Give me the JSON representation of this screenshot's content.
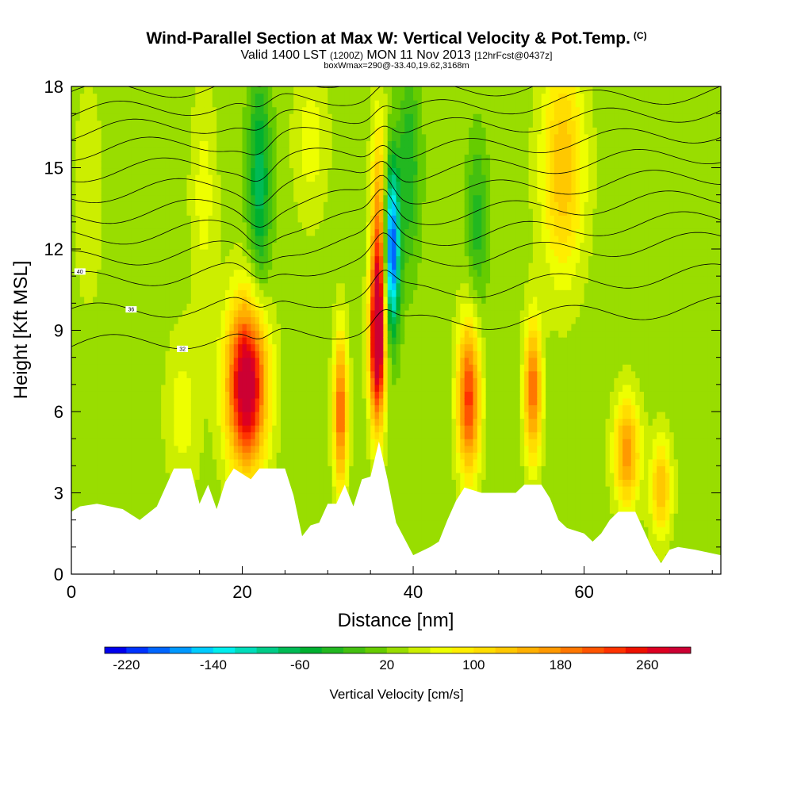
{
  "header": {
    "title": "Wind-Parallel Section at Max W: Vertical Velocity & Pot.Temp.",
    "title_mark": "(C)",
    "subtitle_valid": "Valid 1400 LST",
    "subtitle_z": "(1200Z)",
    "subtitle_date": "MON 11 Nov 2013",
    "subtitle_fcst": "[12hrFcst@0437z]",
    "subnote": "boxWmax=290@-33.40,19.62,3168m"
  },
  "chart_data": {
    "type": "heatmap",
    "title": "Wind-Parallel Section at Max W: Vertical Velocity & Pot.Temp.",
    "xlabel": "Distance [nm]",
    "ylabel": "Height [Kft MSL]",
    "xlim": [
      0,
      76
    ],
    "ylim": [
      0,
      18
    ],
    "x_ticks": [
      "0",
      "20",
      "40",
      "60"
    ],
    "x_tick_values": [
      0,
      20,
      40,
      60
    ],
    "y_ticks": [
      "0",
      "3",
      "6",
      "9",
      "12",
      "15",
      "18"
    ],
    "y_tick_values": [
      0,
      3,
      6,
      9,
      12,
      15,
      18
    ],
    "colorbar": {
      "title": "Vertical Velocity [cm/s]",
      "labels": [
        "-220",
        "-140",
        "-60",
        "20",
        "100",
        "180",
        "260"
      ],
      "label_values": [
        -220,
        -140,
        -60,
        20,
        100,
        180,
        260
      ],
      "min": -240,
      "max": 300,
      "step": 20,
      "colors": [
        "#0000ee",
        "#0033ff",
        "#0066ff",
        "#0099ff",
        "#00ccff",
        "#00eeee",
        "#00ddbb",
        "#00cc88",
        "#00bb55",
        "#00b030",
        "#22b820",
        "#44c010",
        "#66cc00",
        "#99dd00",
        "#ccee00",
        "#eeff00",
        "#ffee00",
        "#ffdd00",
        "#ffc800",
        "#ffb000",
        "#ff9900",
        "#ff7700",
        "#ff5500",
        "#ff3300",
        "#ee1100",
        "#dd0022",
        "#cc0033"
      ]
    },
    "terrain": [
      [
        0,
        2.3
      ],
      [
        1,
        2.5
      ],
      [
        3,
        2.6
      ],
      [
        6,
        2.4
      ],
      [
        8,
        2.0
      ],
      [
        10,
        2.5
      ],
      [
        11,
        3.2
      ],
      [
        12,
        3.9
      ],
      [
        14,
        3.9
      ],
      [
        15,
        2.6
      ],
      [
        16,
        3.3
      ],
      [
        17,
        2.4
      ],
      [
        18,
        3.4
      ],
      [
        19,
        3.9
      ],
      [
        21,
        3.5
      ],
      [
        22,
        3.9
      ],
      [
        25,
        3.9
      ],
      [
        26,
        2.9
      ],
      [
        27,
        1.4
      ],
      [
        28,
        1.8
      ],
      [
        29,
        1.9
      ],
      [
        30,
        2.6
      ],
      [
        31,
        2.6
      ],
      [
        32,
        3.3
      ],
      [
        33,
        2.5
      ],
      [
        34,
        3.5
      ],
      [
        35,
        3.6
      ],
      [
        36,
        4.9
      ],
      [
        37,
        3.5
      ],
      [
        38,
        1.9
      ],
      [
        39,
        1.3
      ],
      [
        40,
        0.7
      ],
      [
        42,
        1.0
      ],
      [
        43,
        1.2
      ],
      [
        44,
        2.0
      ],
      [
        45,
        2.7
      ],
      [
        46,
        3.2
      ],
      [
        48,
        3.0
      ],
      [
        50,
        3.0
      ],
      [
        52,
        3.0
      ],
      [
        53,
        3.3
      ],
      [
        55,
        3.3
      ],
      [
        56,
        2.8
      ],
      [
        57,
        2.0
      ],
      [
        58,
        1.7
      ],
      [
        60,
        1.5
      ],
      [
        61,
        1.2
      ],
      [
        62,
        1.5
      ],
      [
        63,
        2.0
      ],
      [
        64,
        2.3
      ],
      [
        66,
        2.3
      ],
      [
        67,
        1.6
      ],
      [
        68,
        0.9
      ],
      [
        69,
        0.4
      ],
      [
        70,
        0.9
      ],
      [
        71,
        1.0
      ],
      [
        73,
        0.9
      ],
      [
        76,
        0.7
      ]
    ],
    "w_features": [
      {
        "x": 20.5,
        "z": 7.0,
        "w": 290,
        "sx": 2.3,
        "sz": 3.0
      },
      {
        "x": 31.5,
        "z": 6.0,
        "w": 180,
        "sx": 0.8,
        "sz": 2.8
      },
      {
        "x": 35.8,
        "z": 8.5,
        "w": 280,
        "sx": 0.9,
        "sz": 3.0
      },
      {
        "x": 36.0,
        "z": 12.5,
        "w": 150,
        "sx": 0.9,
        "sz": 4.0
      },
      {
        "x": 37.5,
        "z": 12.0,
        "w": -240,
        "sx": 0.9,
        "sz": 3.0
      },
      {
        "x": 46.5,
        "z": 6.5,
        "w": 200,
        "sx": 1.3,
        "sz": 2.8
      },
      {
        "x": 54.0,
        "z": 6.8,
        "w": 170,
        "sx": 1.0,
        "sz": 2.5
      },
      {
        "x": 65.0,
        "z": 4.5,
        "w": 140,
        "sx": 1.5,
        "sz": 2.0
      },
      {
        "x": 69.0,
        "z": 3.2,
        "w": 110,
        "sx": 1.2,
        "sz": 1.8
      },
      {
        "x": 57.5,
        "z": 15.0,
        "w": 110,
        "sx": 2.5,
        "sz": 4.0
      },
      {
        "x": 15.5,
        "z": 14.0,
        "w": 40,
        "sx": 1.5,
        "sz": 4.0
      },
      {
        "x": 22.0,
        "z": 14.5,
        "w": -100,
        "sx": 1.3,
        "sz": 4.0
      },
      {
        "x": 39.5,
        "z": 15.0,
        "w": -70,
        "sx": 1.3,
        "sz": 3.5
      },
      {
        "x": 47.5,
        "z": 13.0,
        "w": -60,
        "sx": 1.2,
        "sz": 3.0
      },
      {
        "x": 13.0,
        "z": 6.0,
        "w": 40,
        "sx": 2.0,
        "sz": 3.0
      },
      {
        "x": 28.0,
        "z": 16.0,
        "w": 40,
        "sx": 2.0,
        "sz": 3.0
      },
      {
        "x": 2.0,
        "z": 14.0,
        "w": 20,
        "sx": 2.0,
        "sz": 5.0
      }
    ],
    "theta_contours": [
      {
        "base": 8.4,
        "slope": 0.02,
        "label": "32",
        "label_x": 13
      },
      {
        "base": 9.6,
        "slope": 0.02,
        "label": "36",
        "label_x": 7
      },
      {
        "base": 10.8,
        "slope": 0.02,
        "label": "40",
        "label_x": 1
      },
      {
        "base": 11.6,
        "slope": 0.02,
        "label": "",
        "label_x": 20
      },
      {
        "base": 12.4,
        "slope": 0.02,
        "label": "",
        "label_x": 20
      },
      {
        "base": 13.2,
        "slope": 0.02,
        "label": "",
        "label_x": 20
      },
      {
        "base": 14.0,
        "slope": 0.02,
        "label": "",
        "label_x": 20
      },
      {
        "base": 14.8,
        "slope": 0.02,
        "label": "",
        "label_x": 20
      },
      {
        "base": 15.6,
        "slope": 0.02,
        "label": "",
        "label_x": 20
      },
      {
        "base": 16.3,
        "slope": 0.02,
        "label": "",
        "label_x": 20
      },
      {
        "base": 17.0,
        "slope": 0.02,
        "label": "",
        "label_x": 20
      },
      {
        "base": 17.7,
        "slope": 0.02,
        "label": "",
        "label_x": 20
      }
    ]
  }
}
